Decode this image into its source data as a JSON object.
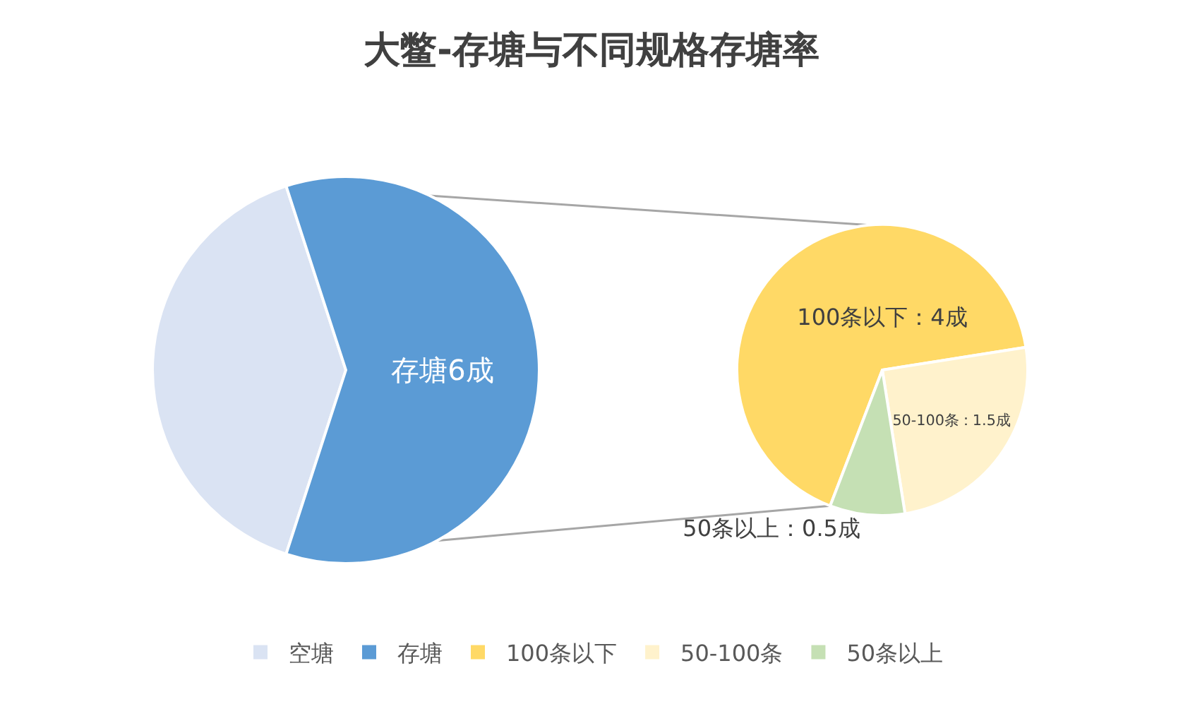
{
  "chart_data": [
    {
      "type": "pie",
      "title": "大鳖-存塘与不同规格存塘率",
      "categories": [
        "空塘",
        "存塘"
      ],
      "values": [
        4,
        6
      ],
      "colors": [
        "#dae3f3",
        "#5b9bd5"
      ],
      "value_labels": [
        null,
        "存塘6成"
      ],
      "legend": "bottom"
    },
    {
      "type": "pie",
      "categories": [
        "100条以下",
        "50-100条",
        "50条以上"
      ],
      "values": [
        4,
        1.5,
        0.5
      ],
      "colors": [
        "#ffd966",
        "#fff2cc",
        "#c5e0b4"
      ],
      "value_labels": [
        "100条以下：4成",
        "50-100条：1.5成",
        "50条以上：0.5成"
      ],
      "legend": "bottom"
    }
  ]
}
